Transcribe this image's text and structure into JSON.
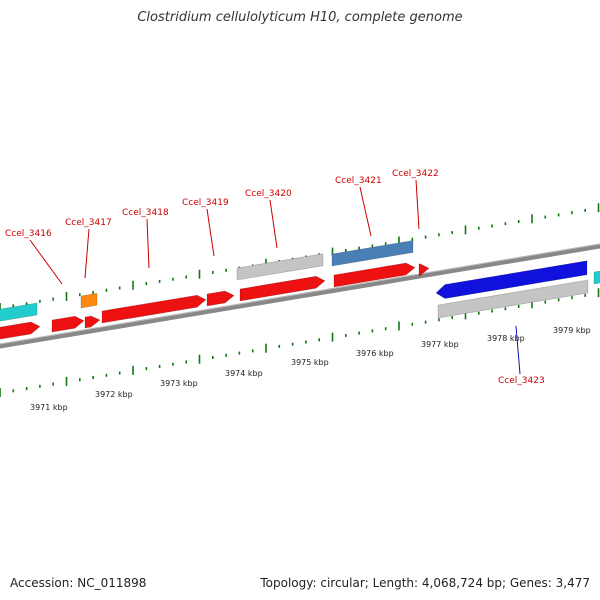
{
  "title": "Clostridium cellulolyticum H10, complete genome",
  "footer": {
    "accession": "Accession: NC_011898",
    "summary": "Topology: circular; Length: 4,068,724 bp; Genes: 3,477"
  },
  "colors": {
    "red": "#ee1111",
    "cyan": "#22cccc",
    "orange": "#ff8811",
    "steelblue": "#4a7fb5",
    "blue": "#1111dd",
    "gray": "#c4c4c4",
    "tick": "#117711",
    "backbone": "#888888",
    "label_red": "#cc0000",
    "label_blue": "#1111aa"
  },
  "kbp_labels": [
    "3971 kbp",
    "3972 kbp",
    "3973 kbp",
    "3974 kbp",
    "3975 kbp",
    "3976 kbp",
    "3977 kbp",
    "3978 kbp",
    "3979 kbp"
  ],
  "gene_labels": [
    {
      "text": "Ccel_3416",
      "color": "label_red"
    },
    {
      "text": "Ccel_3417",
      "color": "label_red"
    },
    {
      "text": "Ccel_3418",
      "color": "label_red"
    },
    {
      "text": "Ccel_3419",
      "color": "label_red"
    },
    {
      "text": "Ccel_3420",
      "color": "label_red"
    },
    {
      "text": "Ccel_3421",
      "color": "label_red"
    },
    {
      "text": "Ccel_3422",
      "color": "label_red"
    },
    {
      "text": "Ccel_3423",
      "color": "label_blue"
    }
  ]
}
